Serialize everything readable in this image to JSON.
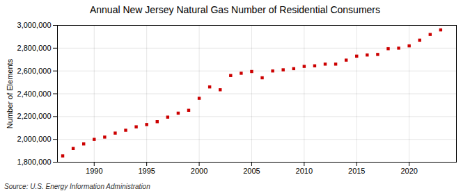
{
  "chart_data": {
    "type": "scatter",
    "title": "Annual New Jersey Natural Gas Number of Residential Consumers",
    "ylabel": "Number of Elements",
    "source": "Source: U.S. Energy Information Administration",
    "x": [
      1987,
      1988,
      1989,
      1990,
      1991,
      1992,
      1993,
      1994,
      1995,
      1996,
      1997,
      1998,
      1999,
      2000,
      2001,
      2002,
      2003,
      2004,
      2005,
      2006,
      2007,
      2008,
      2009,
      2010,
      2011,
      2012,
      2013,
      2014,
      2015,
      2016,
      2017,
      2018,
      2019,
      2020,
      2021,
      2022,
      2023
    ],
    "values": [
      1855000,
      1920000,
      1960000,
      2000000,
      2020000,
      2055000,
      2080000,
      2110000,
      2130000,
      2155000,
      2195000,
      2230000,
      2255000,
      2360000,
      2460000,
      2435000,
      2560000,
      2580000,
      2595000,
      2540000,
      2600000,
      2610000,
      2620000,
      2640000,
      2645000,
      2660000,
      2660000,
      2695000,
      2730000,
      2740000,
      2745000,
      2795000,
      2800000,
      2820000,
      2870000,
      2920000,
      2960000
    ],
    "color": "#cc0000",
    "marker": "square",
    "xlim": [
      1986.5,
      2024.5
    ],
    "xticks": [
      1990,
      1995,
      2000,
      2005,
      2010,
      2015,
      2020
    ],
    "ylim": [
      1800000,
      3000000
    ],
    "yticks": [
      {
        "value": 1800000,
        "label": "1,800,000"
      },
      {
        "value": 2000000,
        "label": "2,000,000"
      },
      {
        "value": 2200000,
        "label": "2,200,000"
      },
      {
        "value": 2400000,
        "label": "2,400,000"
      },
      {
        "value": 2600000,
        "label": "2,600,000"
      },
      {
        "value": 2800000,
        "label": "2,800,000"
      },
      {
        "value": 3000000,
        "label": "3,000,000"
      }
    ],
    "grid": true
  }
}
